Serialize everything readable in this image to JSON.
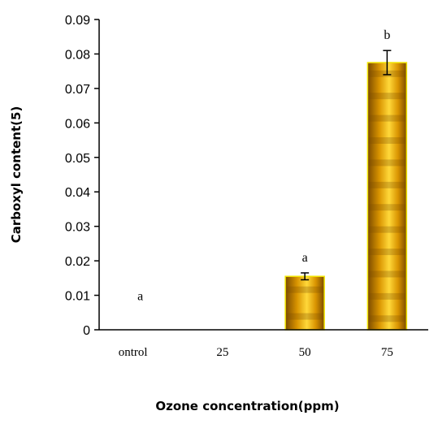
{
  "chart_data": {
    "type": "bar",
    "title": "",
    "xlabel": "Ozone concentration(ppm)",
    "ylabel": "Carboxyl content(5)",
    "categories": [
      "ontrol",
      "25",
      "50",
      "75"
    ],
    "values": [
      0,
      0,
      0.0155,
      0.0775
    ],
    "error": [
      0,
      0,
      0.001,
      0.0035
    ],
    "significance": [
      "a",
      "",
      "a",
      "b"
    ],
    "ylim": [
      0,
      0.09
    ],
    "yticks": [
      "0",
      "0.01",
      "0.02",
      "0.03",
      "0.04",
      "0.05",
      "0.06",
      "0.07",
      "0.08",
      "0.09"
    ],
    "grid": false,
    "legend": "none",
    "bar_color_dark": "#7a4a00",
    "bar_color_light": "#ffd83a",
    "bar_outline": "#f2e600",
    "axis_color": "#000000"
  }
}
